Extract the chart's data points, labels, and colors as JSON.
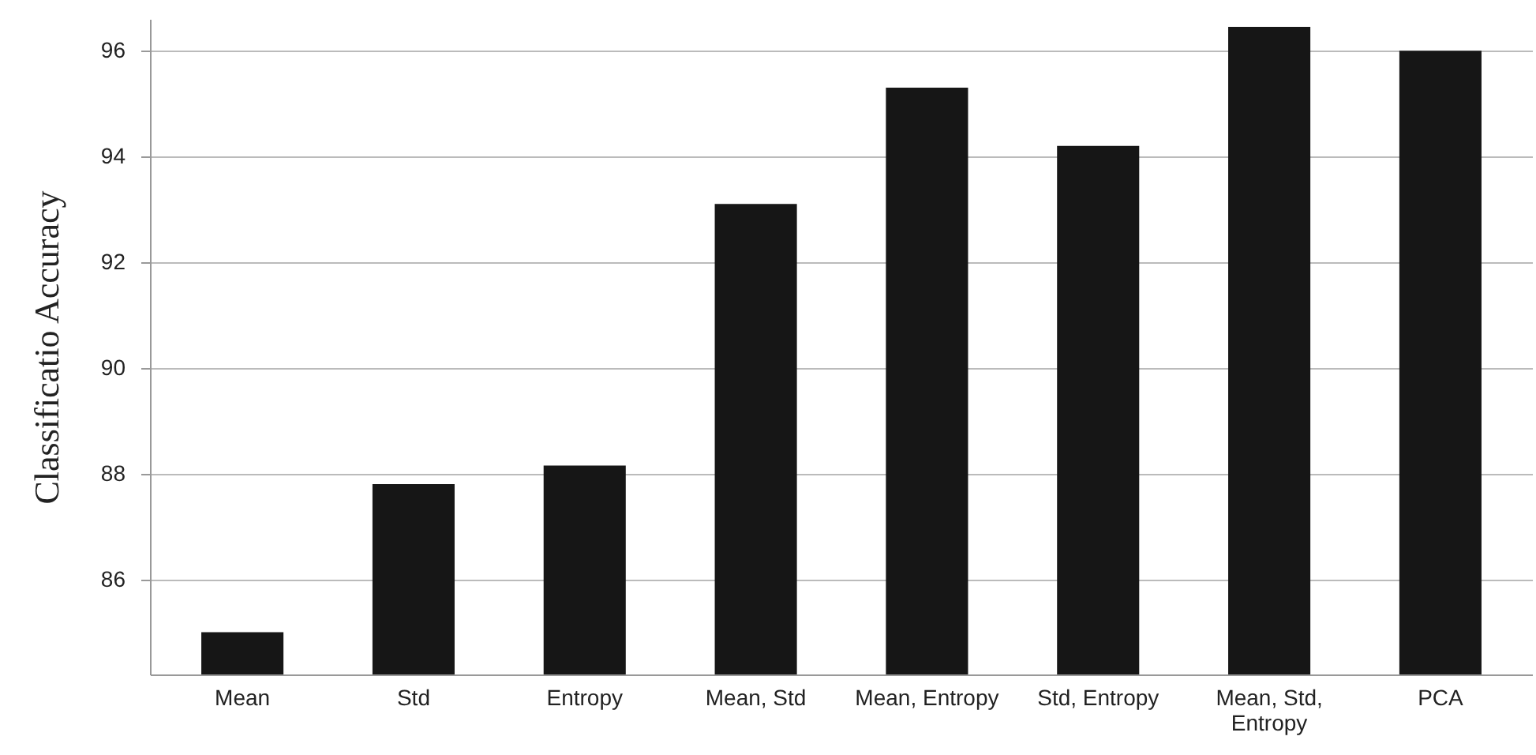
{
  "chart_data": {
    "type": "bar",
    "ylabel": "Classificatio Accuracy",
    "categories": [
      "Mean",
      "Std",
      "Entropy",
      "Mean, Std",
      "Mean, Entropy",
      "Std, Entropy",
      "Mean, Std, Entropy",
      "PCA"
    ],
    "values": [
      85.0,
      87.8,
      88.15,
      93.1,
      95.3,
      94.2,
      96.45,
      96.0
    ],
    "color": "#161616",
    "ylim": [
      84.2,
      96.6
    ],
    "yticks": [
      86,
      88,
      90,
      92,
      94,
      96
    ],
    "grid": "y"
  }
}
